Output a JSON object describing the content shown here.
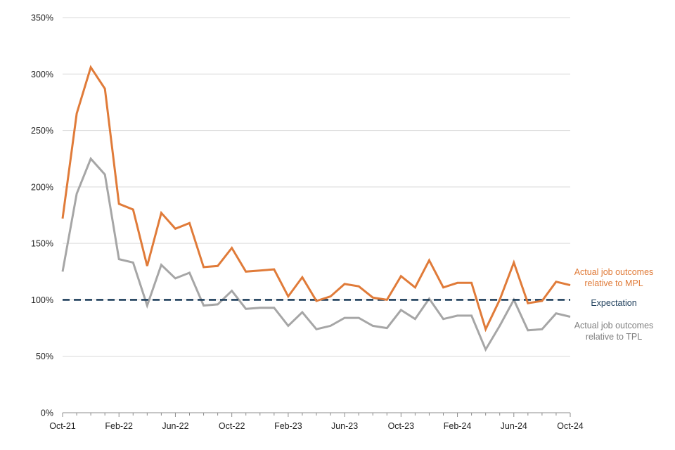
{
  "chart_data": {
    "type": "line",
    "title": "",
    "xlabel": "",
    "ylabel": "",
    "ylim": [
      0,
      350
    ],
    "y_ticks": [
      0,
      50,
      100,
      150,
      200,
      250,
      300,
      350
    ],
    "y_tick_labels": [
      "0%",
      "50%",
      "100%",
      "150%",
      "200%",
      "250%",
      "300%",
      "350%"
    ],
    "x_tick_labels": [
      "Oct-21",
      "Feb-22",
      "Jun-22",
      "Oct-22",
      "Feb-23",
      "Jun-23",
      "Oct-23",
      "Feb-24",
      "Jun-24",
      "Oct-24"
    ],
    "x_tick_every": 4,
    "grid": "horizontal",
    "legend": "inline-right",
    "x": [
      "Oct-21",
      "Nov-21",
      "Dec-21",
      "Jan-22",
      "Feb-22",
      "Mar-22",
      "Apr-22",
      "May-22",
      "Jun-22",
      "Jul-22",
      "Aug-22",
      "Sep-22",
      "Oct-22",
      "Nov-22",
      "Dec-22",
      "Jan-23",
      "Feb-23",
      "Mar-23",
      "Apr-23",
      "May-23",
      "Jun-23",
      "Jul-23",
      "Aug-23",
      "Sep-23",
      "Oct-23",
      "Nov-23",
      "Dec-23",
      "Jan-24",
      "Feb-24",
      "Mar-24",
      "Apr-24",
      "May-24",
      "Jun-24",
      "Jul-24",
      "Aug-24",
      "Sep-24",
      "Oct-24"
    ],
    "series": [
      {
        "name": "Actual job outcomes relative to MPL",
        "label_lines": [
          "Actual job outcomes",
          "relative to MPL"
        ],
        "color": "#E07B39",
        "style": "solid",
        "values": [
          172,
          265,
          306,
          287,
          185,
          180,
          130,
          177,
          163,
          168,
          129,
          130,
          146,
          125,
          126,
          127,
          103,
          120,
          99,
          103,
          114,
          112,
          102,
          100,
          121,
          111,
          135,
          111,
          115,
          115,
          74,
          100,
          133,
          97,
          99,
          116,
          113
        ]
      },
      {
        "name": "Expectation",
        "label_lines": [
          "Expectation"
        ],
        "color": "#1F3F5C",
        "style": "dashed",
        "values": [
          100,
          100,
          100,
          100,
          100,
          100,
          100,
          100,
          100,
          100,
          100,
          100,
          100,
          100,
          100,
          100,
          100,
          100,
          100,
          100,
          100,
          100,
          100,
          100,
          100,
          100,
          100,
          100,
          100,
          100,
          100,
          100,
          100,
          100,
          100,
          100,
          100
        ]
      },
      {
        "name": "Actual job outcomes relative to TPL",
        "label_lines": [
          "Actual job outcomes",
          "relative to TPL"
        ],
        "color": "#A6A6A6",
        "style": "solid",
        "values": [
          125,
          194,
          225,
          211,
          136,
          133,
          95,
          131,
          119,
          124,
          95,
          96,
          108,
          92,
          93,
          93,
          77,
          89,
          74,
          77,
          84,
          84,
          77,
          75,
          91,
          83,
          101,
          83,
          86,
          86,
          56,
          77,
          100,
          73,
          74,
          88,
          85
        ]
      }
    ]
  }
}
